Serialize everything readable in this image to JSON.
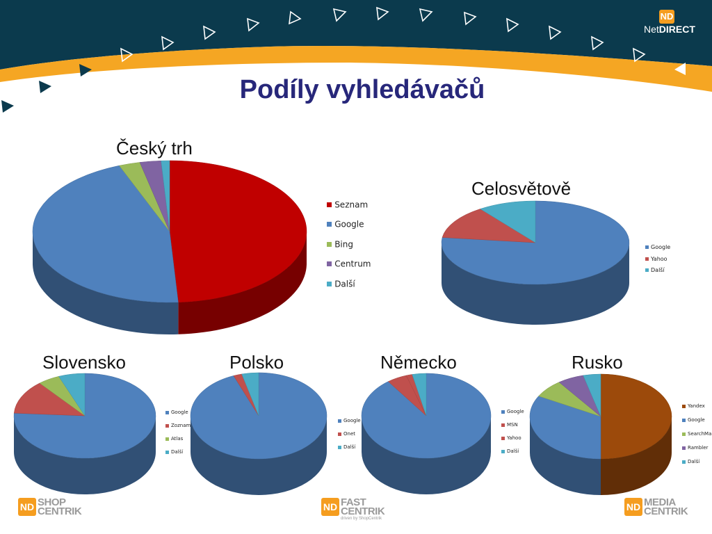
{
  "slide": {
    "title": "Podíly vyhledávačů"
  },
  "brand": {
    "logo_mark": "ND",
    "logo_text_net": "Net",
    "logo_text_direct": "DIRECT"
  },
  "footer": {
    "shop": {
      "mark": "ND",
      "line1": "SHOP",
      "line2": "CENTRIK"
    },
    "fast": {
      "mark": "ND",
      "line1": "FAST",
      "line2": "CENTRIK",
      "tagline": "driven by ShopCentrik"
    },
    "media": {
      "mark": "ND",
      "line1": "MEDIA",
      "line2": "CENTRIK"
    }
  },
  "colors": {
    "header_dark": "#0b3a4d",
    "header_orange": "#f5a623",
    "title": "#27277a",
    "Seznam": "#c00000",
    "Google": "#4f81bd",
    "Bing": "#9bbb59",
    "Centrum": "#8064a2",
    "Další": "#4bacc6",
    "Yahoo": "#c0504d",
    "Zoznam": "#c0504d",
    "Atlas": "#9bbb59",
    "Onet": "#c0504d",
    "MSN": "#c0504d",
    "Yandex": "#9c4a0b",
    "SearchMail": "#9bbb59",
    "Rambler": "#8064a2"
  },
  "chart_data": [
    {
      "id": "cz",
      "type": "pie",
      "title": "Český trh",
      "categories": [
        "Seznam",
        "Google",
        "Bing",
        "Centrum",
        "Další"
      ],
      "values": [
        49,
        45,
        2.5,
        2.5,
        1
      ],
      "legend": "right"
    },
    {
      "id": "world",
      "type": "pie",
      "title": "Celosvětově",
      "categories": [
        "Google",
        "Yahoo",
        "Další"
      ],
      "values": [
        77,
        13,
        10
      ],
      "legend": "right"
    },
    {
      "id": "sk",
      "type": "pie",
      "title": "Slovensko",
      "categories": [
        "Google",
        "Zoznam",
        "Atlas",
        "Další"
      ],
      "values": [
        76,
        13,
        5,
        6
      ],
      "legend": "right"
    },
    {
      "id": "pl",
      "type": "pie",
      "title": "Polsko",
      "categories": [
        "Google",
        "Onet",
        "Další"
      ],
      "values": [
        94,
        2,
        4
      ],
      "legend": "right"
    },
    {
      "id": "de",
      "type": "pie",
      "title": "Německo",
      "categories": [
        "Google",
        "MSN",
        "Yahoo",
        "Další"
      ],
      "values": [
        90,
        5,
        1.5,
        3.5
      ],
      "legend": "right"
    },
    {
      "id": "ru",
      "type": "pie",
      "title": "Rusko",
      "categories": [
        "Yandex",
        "Google",
        "SearchMail",
        "Rambler",
        "Další"
      ],
      "values": [
        50,
        33,
        7,
        6,
        4
      ],
      "legend": "right"
    }
  ]
}
